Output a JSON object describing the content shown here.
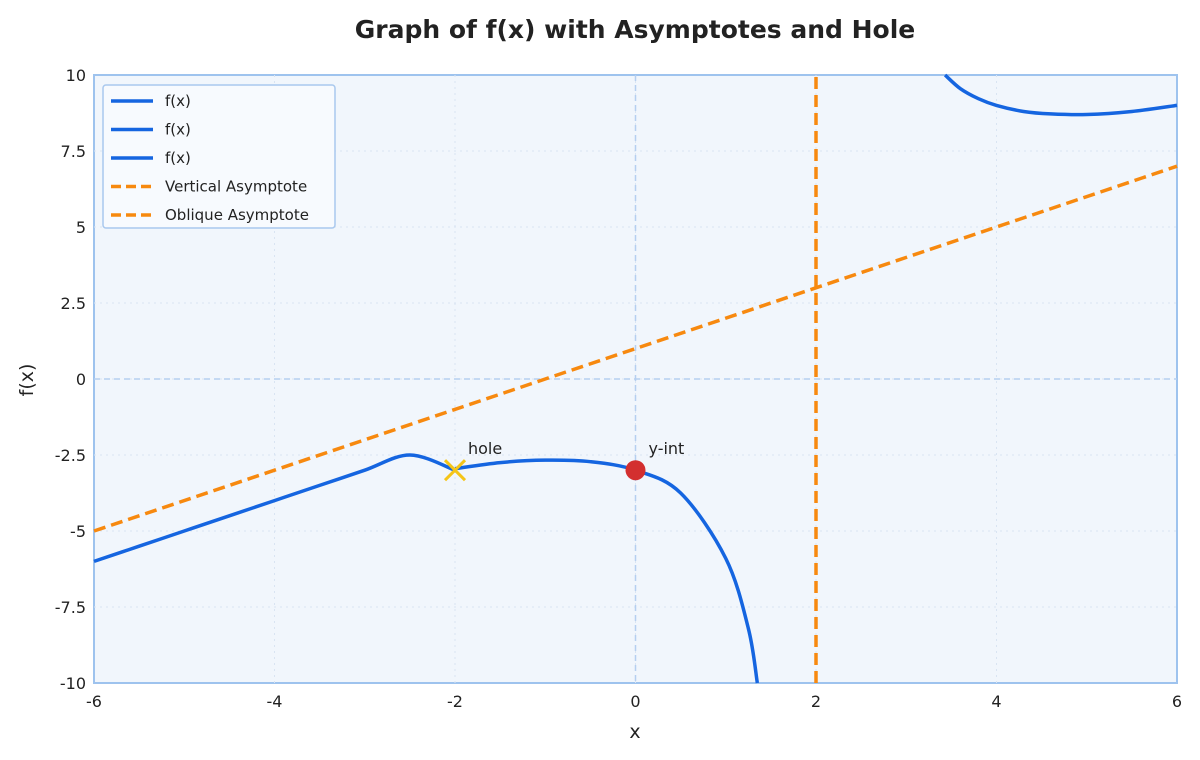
{
  "chart_data": {
    "type": "line",
    "title": "Graph of f(x) with Asymptotes and Hole",
    "xlabel": "x",
    "ylabel": "f(x)",
    "xlim": [
      -6,
      6
    ],
    "ylim": [
      -10,
      10
    ],
    "x_ticks": [
      "-6",
      "-4",
      "-2",
      "0",
      "2",
      "4",
      "6"
    ],
    "y_ticks": [
      "10",
      "7.5",
      "5",
      "2.5",
      "0",
      "-2.5",
      "-5",
      "-7.5",
      "-10"
    ],
    "grid": true,
    "legend_position": "top-left",
    "series": [
      {
        "name": "f(x)",
        "kind": "curve",
        "color": "#1565e0",
        "x": [
          -6,
          -5.5,
          -5,
          -4.5,
          -4,
          -3.5,
          -3,
          -2.5,
          -2
        ],
        "y": [
          -6,
          -5.5,
          -5,
          -4.5,
          -4,
          -3.5,
          -3,
          -2.5,
          -3
        ]
      },
      {
        "name": "f(x)",
        "kind": "curve",
        "color": "#1565e0",
        "x": [
          -2,
          -1.5,
          -1,
          -0.5,
          0,
          0.5,
          1,
          1.25,
          1.35
        ],
        "y": [
          -2.95,
          -2.75,
          -2.67,
          -2.72,
          -3.0,
          -3.75,
          -5.9,
          -8.2,
          -10
        ]
      },
      {
        "name": "f(x)",
        "kind": "curve",
        "color": "#1565e0",
        "x": [
          3.43,
          3.6,
          3.8,
          4.0,
          4.3,
          4.6,
          5.0,
          5.5,
          6.0
        ],
        "y": [
          10,
          9.55,
          9.22,
          9.0,
          8.8,
          8.72,
          8.7,
          8.8,
          9.0
        ]
      },
      {
        "name": "Vertical Asymptote",
        "kind": "vline",
        "color": "#f7890f",
        "x": [
          2,
          2
        ],
        "y": [
          -10,
          10
        ]
      },
      {
        "name": "Oblique Asymptote",
        "kind": "line",
        "color": "#f7890f",
        "x": [
          -6,
          6
        ],
        "y": [
          -5,
          7
        ]
      }
    ],
    "annotations": [
      {
        "text": "hole",
        "x": -2,
        "y": -3,
        "marker": "x",
        "color": "#f5c518"
      },
      {
        "text": "y-int",
        "x": 0,
        "y": -3,
        "marker": "circle",
        "color": "#d32f2f"
      }
    ]
  }
}
